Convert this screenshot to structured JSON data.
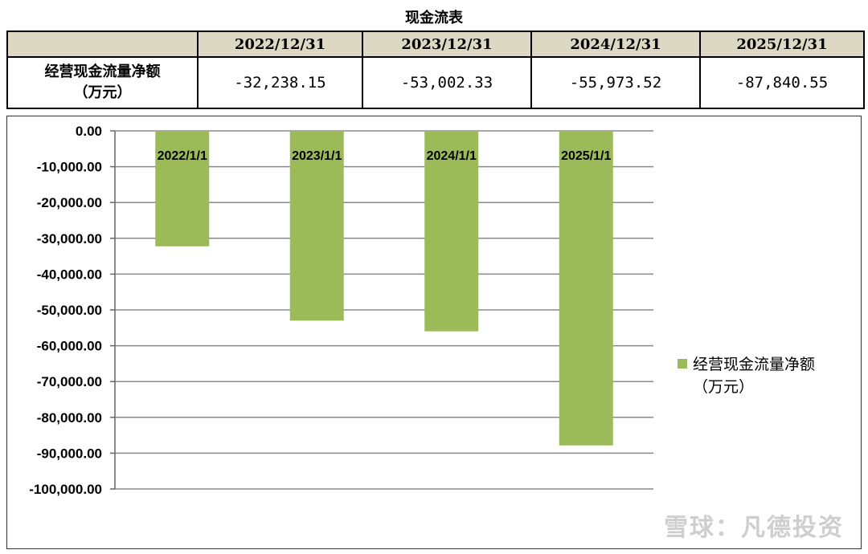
{
  "table": {
    "title": "现金流表",
    "header": [
      "",
      "2022/12/31",
      "2023/12/31",
      "2024/12/31",
      "2025/12/31"
    ],
    "row_label_line1": "经营现金流量净额",
    "row_label_line2": "（万元）",
    "values": [
      "-32,238.15",
      "-53,002.33",
      "-55,973.52",
      "-87,840.55"
    ]
  },
  "chart_data": {
    "type": "bar",
    "categories": [
      "2022/1/1",
      "2023/1/1",
      "2024/1/1",
      "2025/1/1"
    ],
    "series": [
      {
        "name": "经营现金流量净额（万元）",
        "values": [
          -32238.15,
          -53002.33,
          -55973.52,
          -87840.55
        ]
      }
    ],
    "ylim": [
      -100000,
      0
    ],
    "yticks": [
      "0.00",
      "-10,000.00",
      "-20,000.00",
      "-30,000.00",
      "-40,000.00",
      "-50,000.00",
      "-60,000.00",
      "-70,000.00",
      "-80,000.00",
      "-90,000.00",
      "-100,000.00"
    ],
    "grid": true,
    "legend_position": "right",
    "legend_line1": "经营现金流量净额",
    "legend_line2": "（万元）",
    "bar_color": "#9bbb59"
  },
  "watermark": "雪球：凡德投资"
}
